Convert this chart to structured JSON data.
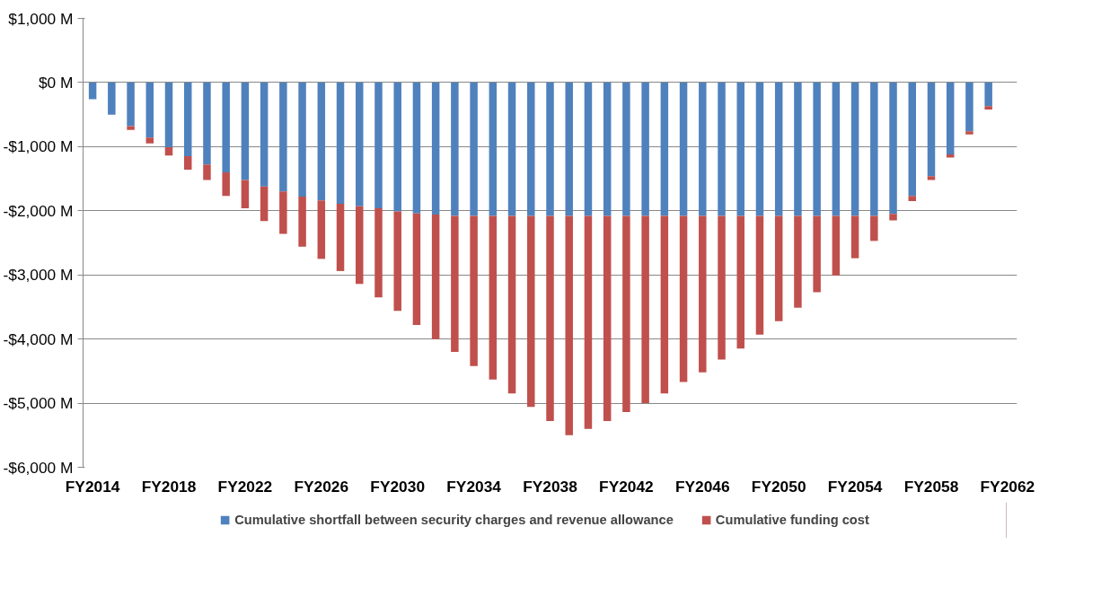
{
  "chart_data": {
    "type": "bar",
    "stacked": true,
    "categories": [
      "FY2014",
      null,
      null,
      null,
      "FY2018",
      null,
      null,
      null,
      "FY2022",
      null,
      null,
      null,
      "FY2026",
      null,
      null,
      null,
      "FY2030",
      null,
      null,
      null,
      "FY2034",
      null,
      null,
      null,
      "FY2038",
      null,
      null,
      null,
      "FY2042",
      null,
      null,
      null,
      "FY2046",
      null,
      null,
      null,
      "FY2050",
      null,
      null,
      null,
      "FY2054",
      null,
      null,
      null,
      "FY2058",
      null,
      null,
      null,
      "FY2062"
    ],
    "series": [
      {
        "name": "Cumulative shortfall between security charges and revenue allowance",
        "color": "#4f81bd",
        "values": [
          -260,
          -500,
          -680,
          -860,
          -1010,
          -1150,
          -1280,
          -1400,
          -1520,
          -1620,
          -1700,
          -1780,
          -1840,
          -1890,
          -1930,
          -1960,
          -2010,
          -2040,
          -2060,
          -2080,
          -2080,
          -2080,
          -2080,
          -2080,
          -2080,
          -2080,
          -2080,
          -2080,
          -2080,
          -2080,
          -2080,
          -2080,
          -2080,
          -2080,
          -2080,
          -2080,
          -2080,
          -2080,
          -2080,
          -2080,
          -2080,
          -2080,
          -2050,
          -1770,
          -1460,
          -1120,
          -760,
          -370,
          null
        ]
      },
      {
        "name": "Cumulative funding cost",
        "color": "#c0504d",
        "values": [
          0,
          0,
          -60,
          -90,
          -130,
          -210,
          -240,
          -370,
          -440,
          -540,
          -660,
          -780,
          -910,
          -1050,
          -1210,
          -1390,
          -1550,
          -1740,
          -1940,
          -2120,
          -2340,
          -2550,
          -2770,
          -2980,
          -3200,
          -3420,
          -3320,
          -3200,
          -3060,
          -2920,
          -2770,
          -2590,
          -2440,
          -2240,
          -2070,
          -1850,
          -1640,
          -1430,
          -1190,
          -930,
          -660,
          -390,
          -100,
          -80,
          -60,
          -50,
          -50,
          -50,
          null
        ]
      }
    ],
    "ylim": [
      -6000,
      1000
    ],
    "yticks": [
      {
        "value": -6000,
        "label": "-$6,000 M"
      },
      {
        "value": -5000,
        "label": "-$5,000 M"
      },
      {
        "value": -4000,
        "label": "-$4,000 M"
      },
      {
        "value": -3000,
        "label": "-$3,000 M"
      },
      {
        "value": -2000,
        "label": "-$2,000 M"
      },
      {
        "value": -1000,
        "label": "-$1,000 M"
      },
      {
        "value": 0,
        "label": "$0 M"
      },
      {
        "value": 1000,
        "label": "$1,000 M"
      }
    ],
    "grid": "y",
    "legend": "bottom"
  }
}
